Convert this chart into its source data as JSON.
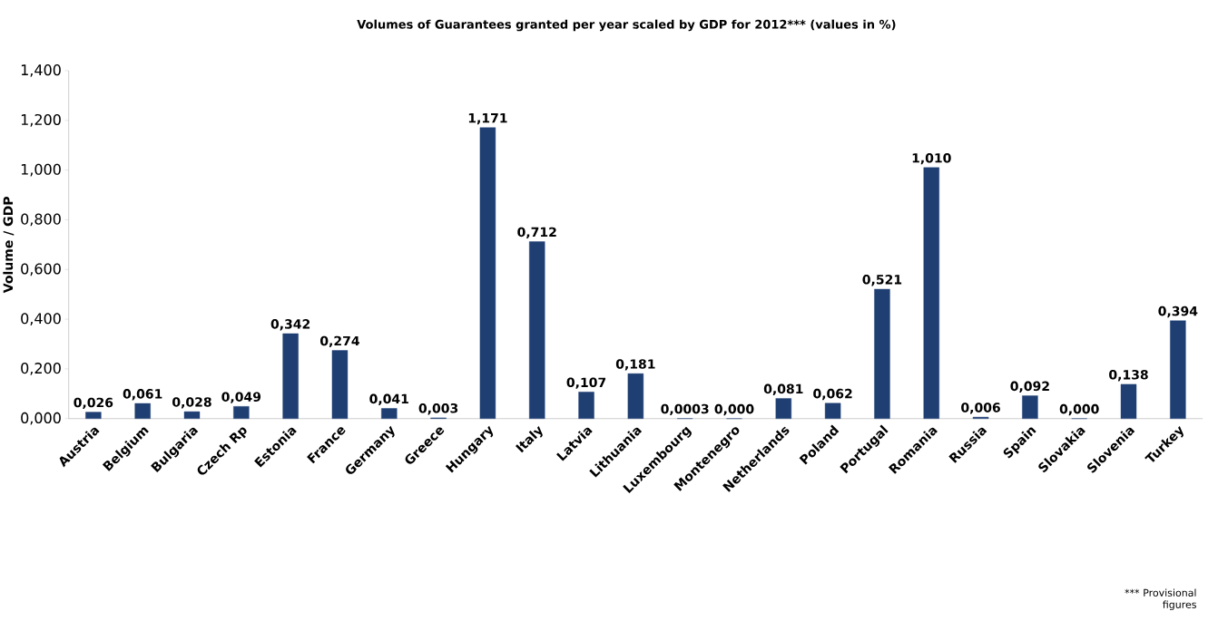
{
  "chart_data": {
    "type": "bar",
    "title": "Volumes of Guarantees granted per year scaled by GDP for 2012*** (values in %)",
    "ylabel": "Volume / GDP",
    "categories": [
      "Austria",
      "Belgium",
      "Bulgaria",
      "Czech Rp",
      "Estonia",
      "France",
      "Germany",
      "Greece",
      "Hungary",
      "Italy",
      "Latvia",
      "Lithuania",
      "Luxembourg",
      "Montenegro",
      "Netherlands",
      "Poland",
      "Portugal",
      "Romania",
      "Russia",
      "Spain",
      "Slovakia",
      "Slovenia",
      "Turkey"
    ],
    "values": [
      0.026,
      0.061,
      0.028,
      0.049,
      0.342,
      0.274,
      0.041,
      0.003,
      1.171,
      0.712,
      0.107,
      0.181,
      0.0003,
      0.0,
      0.081,
      0.062,
      0.521,
      1.01,
      0.006,
      0.092,
      0.0,
      0.138,
      0.394
    ],
    "value_labels": [
      "0,026",
      "0,061",
      "0,028",
      "0,049",
      "0,342",
      "0,274",
      "0,041",
      "0,003",
      "1,171",
      "0,712",
      "0,107",
      "0,181",
      "0,0003",
      "0,000",
      "0,081",
      "0,062",
      "0,521",
      "1,010",
      "0,006",
      "0,092",
      "0,000",
      "0,138",
      "0,394"
    ],
    "color": "#1f3f73",
    "ylim": [
      0,
      1.4
    ],
    "yticks": [
      {
        "value": 0,
        "label": "0,000"
      },
      {
        "value": 0.2,
        "label": "0,200"
      },
      {
        "value": 0.4,
        "label": "0,400"
      },
      {
        "value": 0.6,
        "label": "0,600"
      },
      {
        "value": 0.8,
        "label": "0,800"
      },
      {
        "value": 1.0,
        "label": "1,000"
      },
      {
        "value": 1.2,
        "label": "1,200"
      },
      {
        "value": 1.4,
        "label": "1,400"
      }
    ],
    "grid": false,
    "annotations": [
      "*** Provisional figures"
    ]
  }
}
